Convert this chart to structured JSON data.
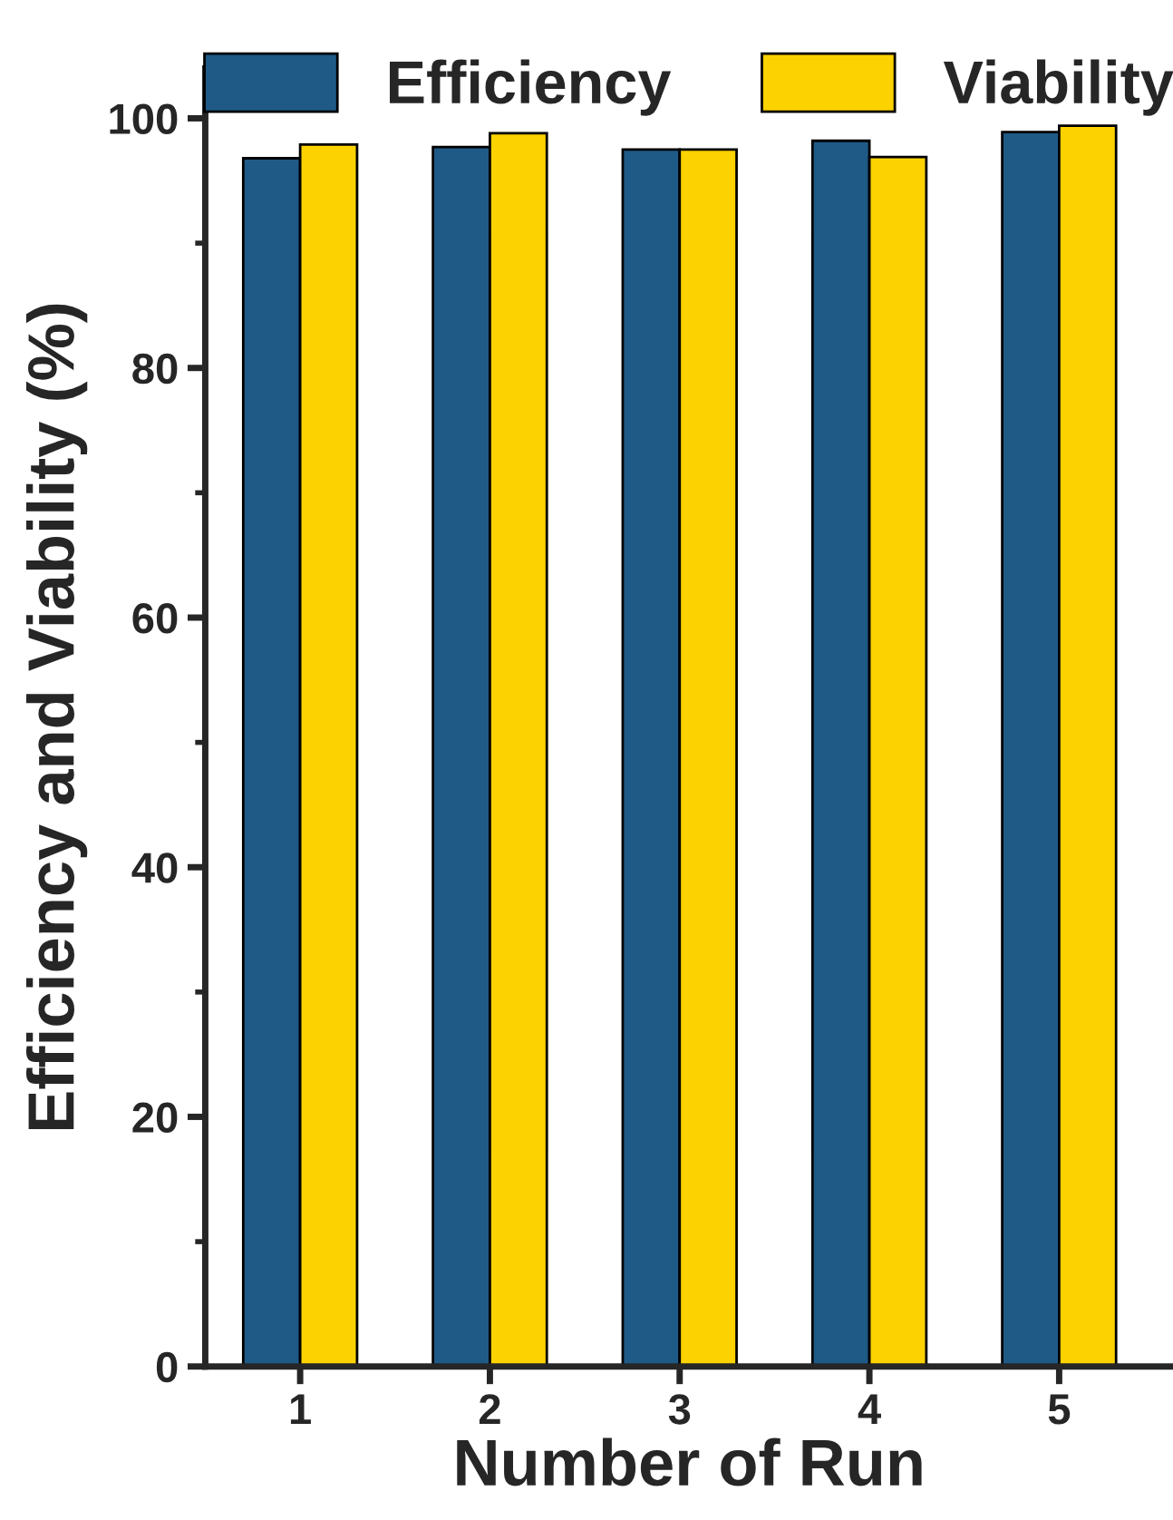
{
  "chart_data": {
    "type": "bar",
    "xlabel": "Number of Run",
    "ylabel": "Efficiency and Viability (%)",
    "categories": [
      "1",
      "2",
      "3",
      "4",
      "5"
    ],
    "series": [
      {
        "name": "Efficiency",
        "color": "#1f5a87",
        "values": [
          96.8,
          97.7,
          97.5,
          98.2,
          98.9
        ]
      },
      {
        "name": "Viability",
        "color": "#fcd200",
        "values": [
          97.9,
          98.8,
          97.5,
          96.9,
          99.4
        ]
      }
    ],
    "ylim": [
      0,
      104
    ],
    "yticks": [
      0,
      20,
      40,
      60,
      80,
      100
    ],
    "grid": false,
    "legend": "top"
  }
}
